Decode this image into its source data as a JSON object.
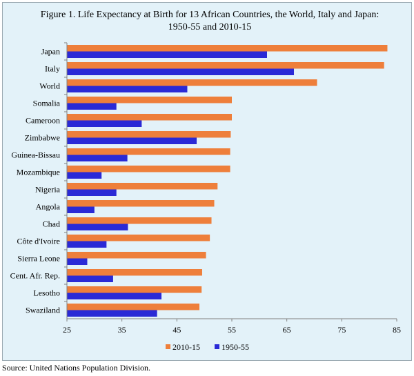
{
  "chart_data": {
    "type": "bar",
    "orientation": "horizontal",
    "title": "Figure 1. Life Expectancy at Birth for 13 African Countries, the World, Italy and Japan:  1950-55 and 2010-15",
    "xlabel": "",
    "ylabel": "",
    "categories": [
      "Japan",
      "Italy",
      "World",
      "Somalia",
      "Cameroon",
      "Zimbabwe",
      "Guinea-Bissau",
      "Mozambique",
      "Nigeria",
      "Angola",
      "Chad",
      "Côte d'Ivoire",
      "Sierra Leone",
      "Cent. Afr. Rep.",
      "Lesotho",
      "Swaziland"
    ],
    "series": [
      {
        "name": "2010-15",
        "color": "#ee7f3b",
        "values": [
          83.3,
          82.7,
          70.5,
          55.0,
          55.0,
          54.8,
          54.7,
          54.7,
          52.4,
          51.8,
          51.3,
          51.0,
          50.3,
          49.6,
          49.5,
          49.1
        ]
      },
      {
        "name": "1950-55",
        "color": "#2a2ad6",
        "values": [
          61.4,
          66.3,
          46.9,
          34.0,
          38.6,
          48.6,
          36.0,
          31.3,
          34.0,
          30.0,
          36.1,
          32.2,
          28.7,
          33.4,
          42.2,
          41.4
        ]
      }
    ],
    "x_ticks": [
      "25",
      "35",
      "45",
      "55",
      "65",
      "75",
      "85"
    ],
    "xlim": [
      25,
      85
    ],
    "grid": false,
    "legend": "bottom-center",
    "legend_entries": [
      "2010-15",
      "1950-55"
    ]
  },
  "source": "Source:  United Nations Population Division."
}
